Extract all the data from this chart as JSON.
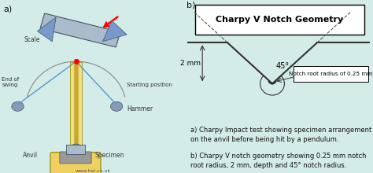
{
  "bg_color": "#d4ece8",
  "title": "Charpy V Notch Geometry",
  "depth_label": "2 mm",
  "angle_label": "45°",
  "root_label": "Notch root radius of 0.25 mm",
  "caption_a": "a) Charpy Impact test showing specimen arrangement\non the anvil before being hit by a pendulum.",
  "caption_b": "b) Charpy V notch geometry showing 0.25 mm notch\nroot radius, 2 mm, depth and 45° notch radius.",
  "label_a": "a)",
  "label_b": "b)",
  "line_color": "#333333",
  "dashed_color": "#555555",
  "text_color": "#111111",
  "caption_fontsize": 6.0,
  "title_fontsize": 8.0,
  "scale_label": "Scale",
  "start_label": "Starting position",
  "swing_label": "End of\nswing",
  "hammer_label": "Hammer",
  "specimen_label": "Specimen",
  "anvil_label": "Anvil",
  "website": "www.twi.co.uk",
  "col_color": "#f0e080",
  "base_color": "#f0d060",
  "hammer_color": "#8899bb",
  "specimen_color": "#aabbcc",
  "anvil_color": "#999999",
  "arm_color": "#c8a830",
  "swing_arm_color": "#5599cc"
}
